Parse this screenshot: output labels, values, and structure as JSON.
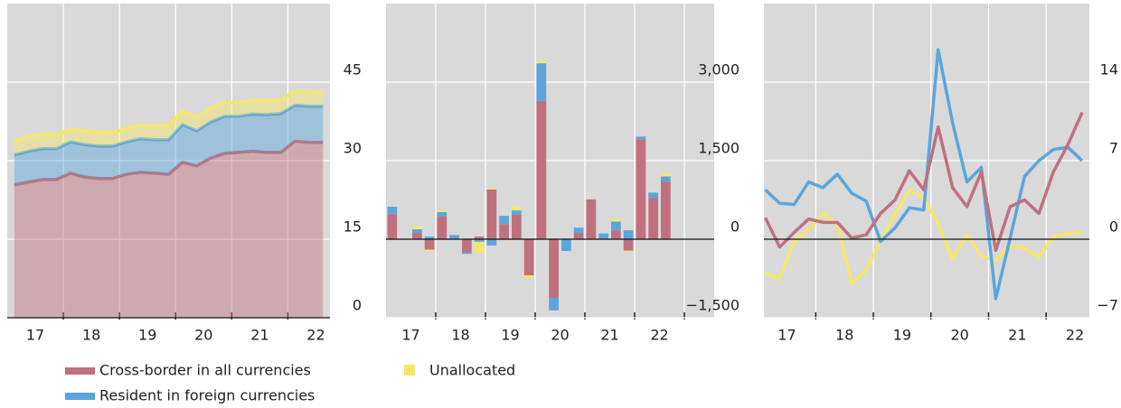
{
  "chart_data": [
    {
      "type": "area",
      "x": [
        2017.125,
        2017.375,
        2017.625,
        2017.875,
        2018.125,
        2018.375,
        2018.625,
        2018.875,
        2019.125,
        2019.375,
        2019.625,
        2019.875,
        2020.125,
        2020.375,
        2020.625,
        2020.875,
        2021.125,
        2021.375,
        2021.625,
        2021.875,
        2022.125,
        2022.375,
        2022.625
      ],
      "xlim": [
        2017.0,
        2022.75
      ],
      "xticks": [
        {
          "value": 2017.5,
          "label": "17"
        },
        {
          "value": 2018.5,
          "label": "18"
        },
        {
          "value": 2019.5,
          "label": "19"
        },
        {
          "value": 2020.5,
          "label": "20"
        },
        {
          "value": 2021.5,
          "label": "21"
        },
        {
          "value": 2022.5,
          "label": "22"
        }
      ],
      "xgrid": [
        2018,
        2019,
        2020,
        2021,
        2022
      ],
      "ylim": [
        0,
        60
      ],
      "yticks": [
        0,
        15,
        30,
        45
      ],
      "grid": true,
      "series": [
        {
          "name": "Cross-border in all currencies",
          "color": "#c0707f",
          "values": [
            25.4,
            25.9,
            26.4,
            26.4,
            27.6,
            26.9,
            26.6,
            26.6,
            27.4,
            27.8,
            27.6,
            27.4,
            29.7,
            29.0,
            30.5,
            31.4,
            31.6,
            31.8,
            31.6,
            31.6,
            33.7,
            33.5,
            33.5
          ]
        },
        {
          "name": "Resident in foreign currencies",
          "color": "#5ba5dc",
          "values": [
            5.7,
            5.9,
            5.9,
            5.9,
            6.0,
            6.2,
            6.2,
            6.2,
            6.2,
            6.4,
            6.4,
            6.6,
            7.2,
            6.7,
            6.9,
            7.1,
            6.9,
            7.1,
            7.2,
            7.4,
            6.9,
            6.9,
            6.9
          ]
        },
        {
          "name": "Unallocated",
          "color": "#f5e66a",
          "values": [
            2.6,
            2.8,
            2.8,
            2.6,
            2.4,
            2.6,
            2.6,
            2.6,
            2.6,
            2.6,
            2.6,
            2.8,
            2.6,
            2.6,
            2.6,
            2.6,
            2.6,
            2.6,
            2.6,
            2.6,
            2.6,
            2.8,
            2.6
          ]
        }
      ]
    },
    {
      "type": "bar",
      "x": [
        2017.125,
        2017.375,
        2017.625,
        2017.875,
        2018.125,
        2018.375,
        2018.625,
        2018.875,
        2019.125,
        2019.375,
        2019.625,
        2019.875,
        2020.125,
        2020.375,
        2020.625,
        2020.875,
        2021.125,
        2021.375,
        2021.625,
        2021.875,
        2022.125,
        2022.375,
        2022.625
      ],
      "xlim": [
        2017.0,
        2023.6
      ],
      "xticks": [
        {
          "value": 2017.5,
          "label": "17"
        },
        {
          "value": 2018.5,
          "label": "18"
        },
        {
          "value": 2019.5,
          "label": "19"
        },
        {
          "value": 2020.5,
          "label": "20"
        },
        {
          "value": 2021.5,
          "label": "21"
        },
        {
          "value": 2022.5,
          "label": "22"
        }
      ],
      "xgrid": [
        2018,
        2019,
        2020,
        2021,
        2022,
        2023
      ],
      "ylim": [
        -1500,
        4500
      ],
      "yticks": [
        {
          "value": -1500,
          "label": "−1,500"
        },
        0,
        {
          "value": 1500,
          "label": "1,500"
        },
        {
          "value": 3000,
          "label": "3,000"
        }
      ],
      "grid": true,
      "series": [
        {
          "name": "Cross-border in all currencies",
          "color": "#c0707f",
          "values": [
            480,
            10,
            120,
            -200,
            430,
            10,
            -250,
            50,
            950,
            290,
            465,
            -690,
            2640,
            -1120,
            0,
            120,
            760,
            10,
            170,
            -220,
            1910,
            790,
            1100
          ]
        },
        {
          "name": "Resident in foreign currencies",
          "color": "#5ba5dc",
          "values": [
            140,
            0,
            70,
            50,
            90,
            70,
            -30,
            -50,
            -120,
            155,
            85,
            0,
            720,
            -240,
            -225,
            100,
            0,
            100,
            170,
            170,
            50,
            100,
            100
          ]
        },
        {
          "name": "Unallocated",
          "color": "#f5e66a",
          "values": [
            0,
            0,
            50,
            -30,
            35,
            0,
            0,
            -200,
            35,
            0,
            70,
            -50,
            50,
            0,
            0,
            0,
            0,
            0,
            50,
            -20,
            0,
            0,
            50
          ]
        }
      ]
    },
    {
      "type": "line",
      "x": [
        2017.125,
        2017.375,
        2017.625,
        2017.875,
        2018.125,
        2018.375,
        2018.625,
        2018.875,
        2019.125,
        2019.375,
        2019.625,
        2019.875,
        2020.125,
        2020.375,
        2020.625,
        2020.875,
        2021.125,
        2021.375,
        2021.625,
        2021.875,
        2022.125,
        2022.375,
        2022.625
      ],
      "xlim": [
        2017.1,
        2022.75
      ],
      "xticks": [
        {
          "value": 2017.5,
          "label": "17"
        },
        {
          "value": 2018.5,
          "label": "18"
        },
        {
          "value": 2019.5,
          "label": "19"
        },
        {
          "value": 2020.5,
          "label": "20"
        },
        {
          "value": 2021.5,
          "label": "21"
        },
        {
          "value": 2022.5,
          "label": "22"
        }
      ],
      "xgrid": [
        2018,
        2019,
        2020,
        2021,
        2022
      ],
      "ylim": [
        -7,
        21
      ],
      "yticks": [
        {
          "value": -7,
          "label": "−7"
        },
        0,
        7,
        14
      ],
      "grid": true,
      "series": [
        {
          "name": "Cross-border in all currencies",
          "color": "#c0707f",
          "values": [
            1.9,
            -0.7,
            0.6,
            1.8,
            1.5,
            1.5,
            0.1,
            0.4,
            2.3,
            3.5,
            6.1,
            4.4,
            10.0,
            4.6,
            2.9,
            6.0,
            -1.0,
            2.9,
            3.5,
            2.3,
            6.0,
            8.4,
            11.3
          ]
        },
        {
          "name": "Resident in foreign currencies",
          "color": "#5ba5dc",
          "values": [
            4.4,
            3.2,
            3.1,
            5.1,
            4.6,
            5.8,
            4.1,
            3.4,
            -0.2,
            1.0,
            2.8,
            2.6,
            16.9,
            10.4,
            5.1,
            6.4,
            -5.3,
            0.1,
            5.6,
            7.0,
            8.0,
            8.2,
            7.0
          ]
        },
        {
          "name": "Unallocated",
          "color": "#f5e66a",
          "values": [
            -3.0,
            -3.5,
            -0.2,
            0.8,
            2.3,
            1.3,
            -3.9,
            -2.8,
            -0.2,
            2.2,
            4.4,
            3.7,
            1.4,
            -1.8,
            0.4,
            -1.5,
            -1.9,
            -0.6,
            -0.8,
            -1.6,
            0.2,
            0.5,
            0.6
          ]
        }
      ]
    }
  ]
}
